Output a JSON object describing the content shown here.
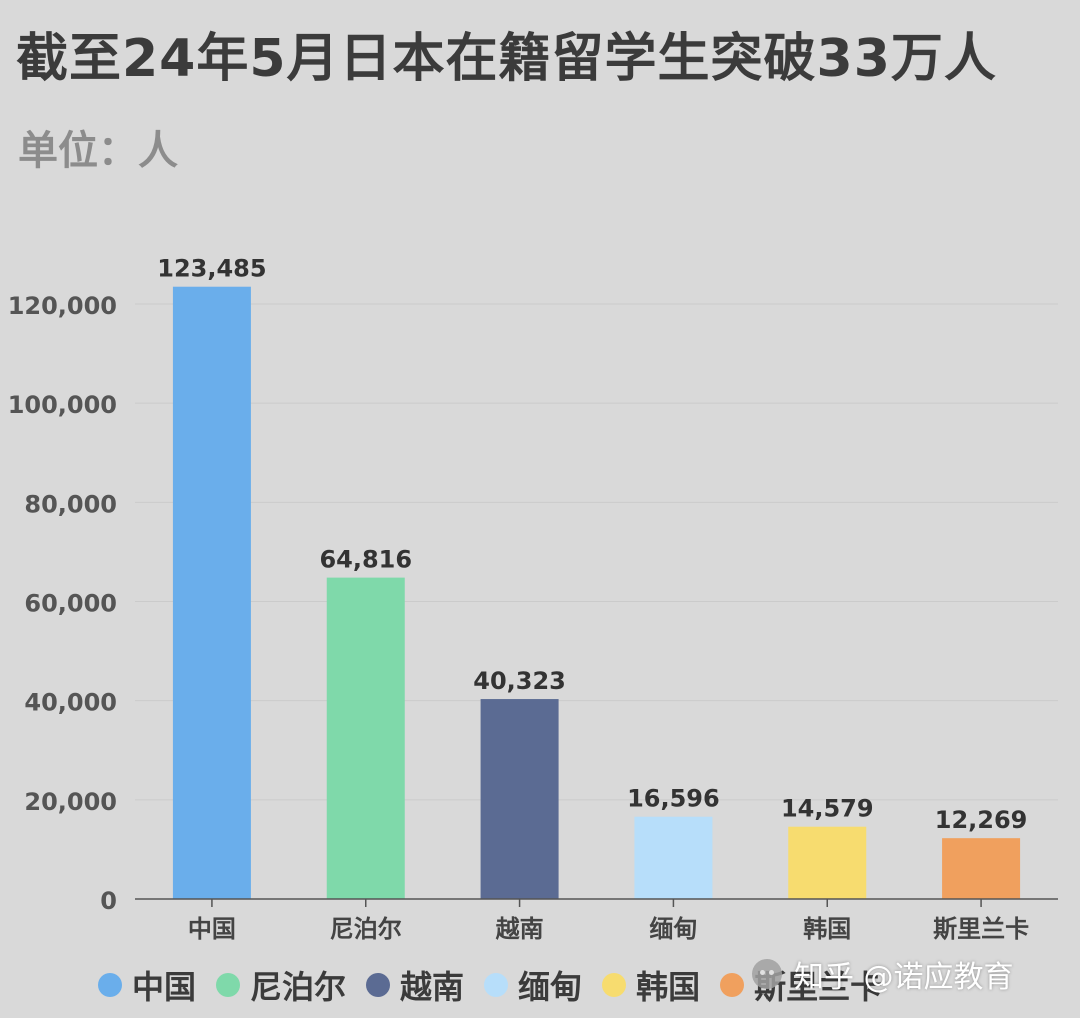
{
  "title": "截至24年5月日本在籍留学生突破33万人",
  "subtitle": "单位：人",
  "chart_data": {
    "type": "bar",
    "categories": [
      "中国",
      "尼泊尔",
      "越南",
      "缅甸",
      "韩国",
      "斯里兰卡"
    ],
    "values": [
      123485,
      64816,
      40323,
      16596,
      14579,
      12269
    ],
    "data_labels": [
      "123,485",
      "64,816",
      "40,323",
      "16,596",
      "14,579",
      "12,269"
    ],
    "colors": [
      "#6aaeeb",
      "#7fd9aa",
      "#5b6b93",
      "#b7defa",
      "#f7dc6f",
      "#f0a05e"
    ],
    "ylim": [
      0,
      120000
    ],
    "yticks": [
      0,
      20000,
      40000,
      60000,
      80000,
      100000,
      120000
    ],
    "ytick_labels": [
      "0",
      "20,000",
      "40,000",
      "60,000",
      "80,000",
      "100,000",
      "120,000"
    ],
    "xlabel": "",
    "ylabel": "",
    "grid": true,
    "legend": "bottom"
  },
  "watermark": {
    "text": "知乎 @诺应教育",
    "icon": "wechat-icon"
  }
}
